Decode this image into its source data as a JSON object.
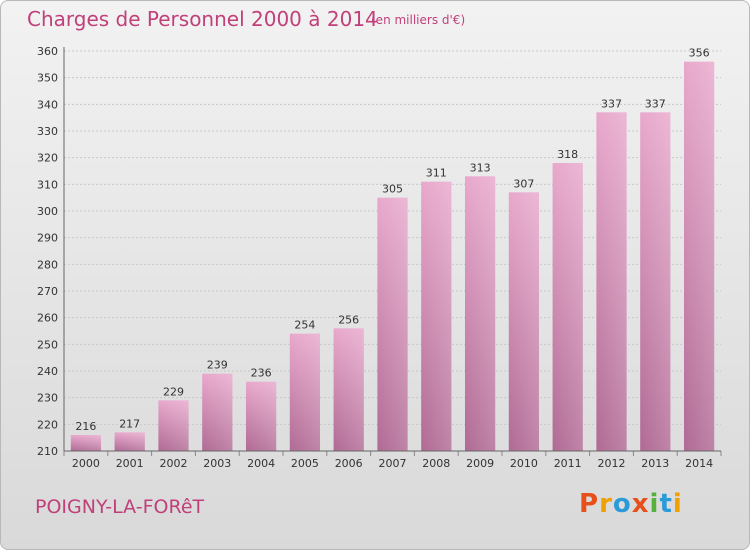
{
  "header": {
    "title": "Charges de Personnel 2000 à 2014",
    "subtitle": "(en milliers d'€)"
  },
  "footer": {
    "commune": "POIGNY-LA-FORêT",
    "logo": "Proxiti",
    "logo_colors": [
      "#e8501a",
      "#f0a000",
      "#2a9ad8",
      "#e8501a",
      "#55b03c",
      "#2a9ad8",
      "#f0a000"
    ]
  },
  "chart_data": {
    "type": "bar",
    "title": "Charges de Personnel 2000 à 2014",
    "subtitle": "(en milliers d'€)",
    "xlabel": "",
    "ylabel": "",
    "categories": [
      "2000",
      "2001",
      "2002",
      "2003",
      "2004",
      "2005",
      "2006",
      "2007",
      "2008",
      "2009",
      "2010",
      "2011",
      "2012",
      "2013",
      "2014"
    ],
    "values": [
      216,
      217,
      229,
      239,
      236,
      254,
      256,
      305,
      311,
      313,
      307,
      318,
      337,
      337,
      356
    ],
    "ylim": [
      210,
      360
    ],
    "yticks": [
      210,
      220,
      230,
      240,
      250,
      260,
      270,
      280,
      290,
      300,
      310,
      320,
      330,
      340,
      350,
      360
    ],
    "grid": true,
    "bar_color_top": "#e8a8cc",
    "bar_color_bottom": "#b06a94"
  }
}
